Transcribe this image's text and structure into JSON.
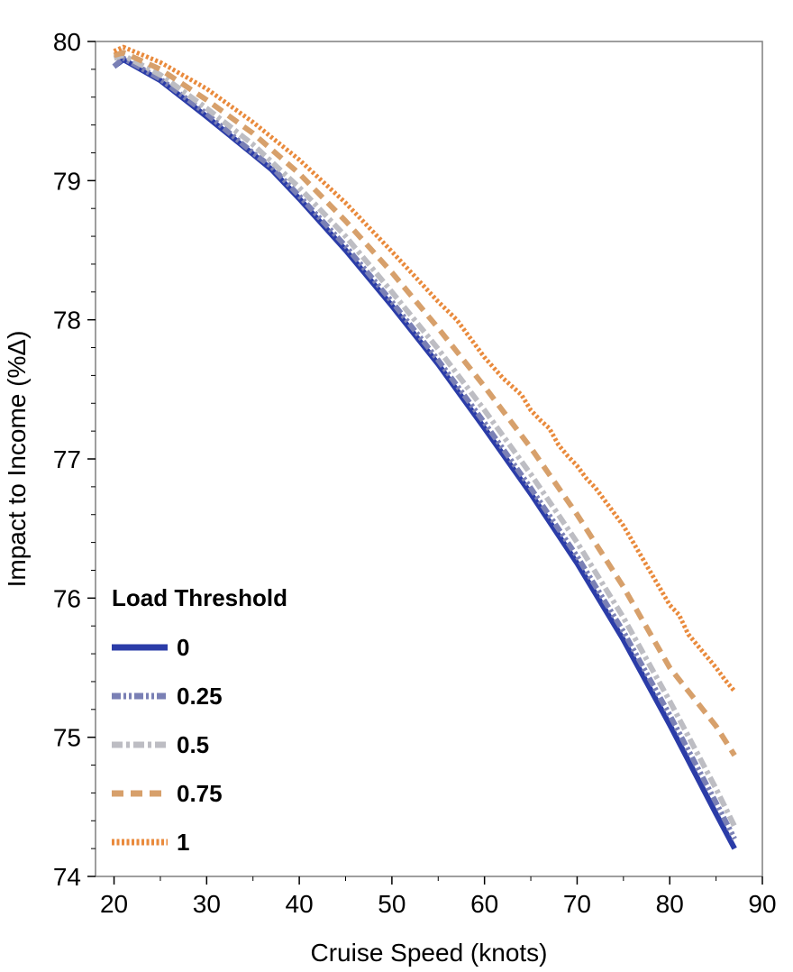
{
  "chart_data": {
    "type": "line",
    "title": "",
    "xlabel": "Cruise Speed (knots)",
    "ylabel": "Impact to Income (%Δ)",
    "xlim": [
      18,
      90
    ],
    "ylim": [
      74,
      80
    ],
    "xticks": [
      20,
      30,
      40,
      50,
      60,
      70,
      80,
      90
    ],
    "yticks": [
      74,
      75,
      76,
      77,
      78,
      79,
      80
    ],
    "grid": false,
    "legend": {
      "title": "Load Threshold",
      "position": "bottom-left"
    },
    "series": [
      {
        "name": "0",
        "color": "#2b3ca8",
        "style": "solid",
        "x": [
          20,
          21,
          25,
          30,
          35,
          37,
          40,
          45,
          50,
          55,
          60,
          65,
          70,
          75,
          80,
          85,
          87
        ],
        "y": [
          79.82,
          79.87,
          79.72,
          79.46,
          79.19,
          79.08,
          78.87,
          78.5,
          78.1,
          77.68,
          77.22,
          76.75,
          76.25,
          75.7,
          75.09,
          74.45,
          74.2
        ]
      },
      {
        "name": "0.25",
        "color": "#7a80b5",
        "style": "dashdotdot",
        "x": [
          20,
          21,
          25,
          30,
          35,
          37,
          40,
          45,
          50,
          55,
          60,
          65,
          70,
          75,
          80,
          85,
          87
        ],
        "y": [
          79.82,
          79.88,
          79.73,
          79.48,
          79.2,
          79.1,
          78.89,
          78.53,
          78.13,
          77.71,
          77.26,
          76.79,
          76.3,
          75.76,
          75.16,
          74.53,
          74.27
        ]
      },
      {
        "name": "0.5",
        "color": "#bdbdc3",
        "style": "dashdot",
        "x": [
          20,
          21,
          25,
          30,
          35,
          40,
          45,
          50,
          55,
          60,
          65,
          70,
          75,
          80,
          85,
          87
        ],
        "y": [
          79.88,
          79.9,
          79.76,
          79.52,
          79.26,
          78.95,
          78.6,
          78.2,
          77.79,
          77.35,
          76.89,
          76.4,
          75.86,
          75.26,
          74.63,
          74.36
        ]
      },
      {
        "name": "0.75",
        "color": "#d7a06b",
        "style": "dashed",
        "x": [
          20,
          21,
          25,
          30,
          35,
          40,
          45,
          50,
          55,
          60,
          65,
          70,
          75,
          80,
          85,
          87
        ],
        "y": [
          79.9,
          79.92,
          79.8,
          79.58,
          79.34,
          79.05,
          78.71,
          78.34,
          77.94,
          77.52,
          77.08,
          76.6,
          76.08,
          75.5,
          75.08,
          74.87
        ]
      },
      {
        "name": "1",
        "color": "#e98a3c",
        "style": "dotted",
        "x": [
          20,
          21,
          25,
          30,
          35,
          40,
          45,
          50,
          55,
          57,
          60,
          62,
          64,
          65,
          66,
          67,
          68,
          69,
          70,
          71,
          72,
          73,
          75,
          80,
          81,
          82,
          85,
          86,
          87
        ],
        "y": [
          79.93,
          79.96,
          79.85,
          79.66,
          79.42,
          79.15,
          78.84,
          78.49,
          78.13,
          78.0,
          77.73,
          77.58,
          77.46,
          77.35,
          77.28,
          77.22,
          77.1,
          77.02,
          76.95,
          76.86,
          76.79,
          76.7,
          76.52,
          75.95,
          75.88,
          75.74,
          75.5,
          75.41,
          75.33
        ]
      }
    ]
  }
}
